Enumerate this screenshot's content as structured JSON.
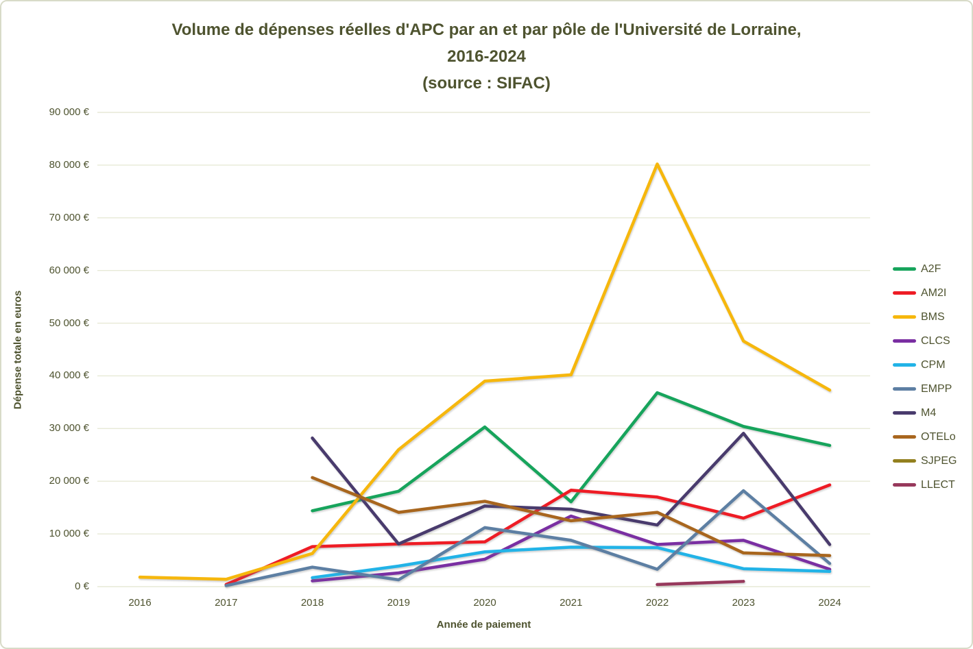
{
  "title": {
    "line1": "Volume de dépenses réelles d'APC par an et par pôle de l'Université de Lorraine,",
    "line2": "2016-2024",
    "line3": "(source : SIFAC)"
  },
  "colors": {
    "text": "#4e532f",
    "gridline": "#e7e9d6",
    "frame_border": "#d8dbc8",
    "background": "#ffffff"
  },
  "chart_data": {
    "type": "line",
    "title": "Volume de dépenses réelles d'APC par an et par pôle de l'Université de Lorraine, 2016-2024 (source : SIFAC)",
    "xlabel": "Année de paiement",
    "ylabel": "Dépense totale en euros",
    "x_labels": [
      "2016",
      "2017",
      "2018",
      "2019",
      "2020",
      "2021",
      "2022",
      "2023",
      "2024"
    ],
    "ylim": [
      0,
      90000
    ],
    "ytick_step": 10000,
    "ytick_labels": [
      "0 €",
      "10 000 €",
      "20 000 €",
      "30 000 €",
      "40 000 €",
      "50 000 €",
      "60 000 €",
      "70 000 €",
      "80 000 €",
      "90 000 €"
    ],
    "grid": "horizontal",
    "legend_position": "right",
    "series": [
      {
        "name": "A2F",
        "color": "#17a45c",
        "values": [
          null,
          null,
          14400,
          18100,
          30300,
          16100,
          36800,
          30400,
          26800
        ]
      },
      {
        "name": "AM2I",
        "color": "#ee1c25",
        "values": [
          null,
          400,
          7600,
          8100,
          8500,
          18300,
          17000,
          13000,
          19300
        ]
      },
      {
        "name": "BMS",
        "color": "#f6b70d",
        "values": [
          1800,
          1400,
          6300,
          26000,
          39000,
          40200,
          80200,
          46600,
          37300
        ]
      },
      {
        "name": "CLCS",
        "color": "#7a2fa2",
        "values": [
          null,
          null,
          1100,
          2600,
          5200,
          13400,
          8000,
          8800,
          3300
        ]
      },
      {
        "name": "CPM",
        "color": "#22b3e7",
        "values": [
          null,
          null,
          1700,
          3900,
          6600,
          7500,
          7400,
          3400,
          2900
        ]
      },
      {
        "name": "EMPP",
        "color": "#5d7fa3",
        "values": [
          null,
          200,
          3700,
          1300,
          11200,
          8800,
          3300,
          18200,
          4400
        ]
      },
      {
        "name": "M4",
        "color": "#493b6d",
        "values": [
          null,
          null,
          28200,
          8100,
          15300,
          14700,
          11700,
          29100,
          8000
        ]
      },
      {
        "name": "OTELo",
        "color": "#a8661e",
        "values": [
          null,
          null,
          20700,
          14100,
          16200,
          12500,
          14100,
          6400,
          5900
        ]
      },
      {
        "name": "SJPEG",
        "color": "#93801f",
        "values": [
          null,
          null,
          null,
          null,
          null,
          null,
          null,
          null,
          null
        ]
      },
      {
        "name": "LLECT",
        "color": "#97395c",
        "values": [
          null,
          null,
          null,
          null,
          null,
          null,
          400,
          1000,
          null
        ]
      }
    ]
  }
}
